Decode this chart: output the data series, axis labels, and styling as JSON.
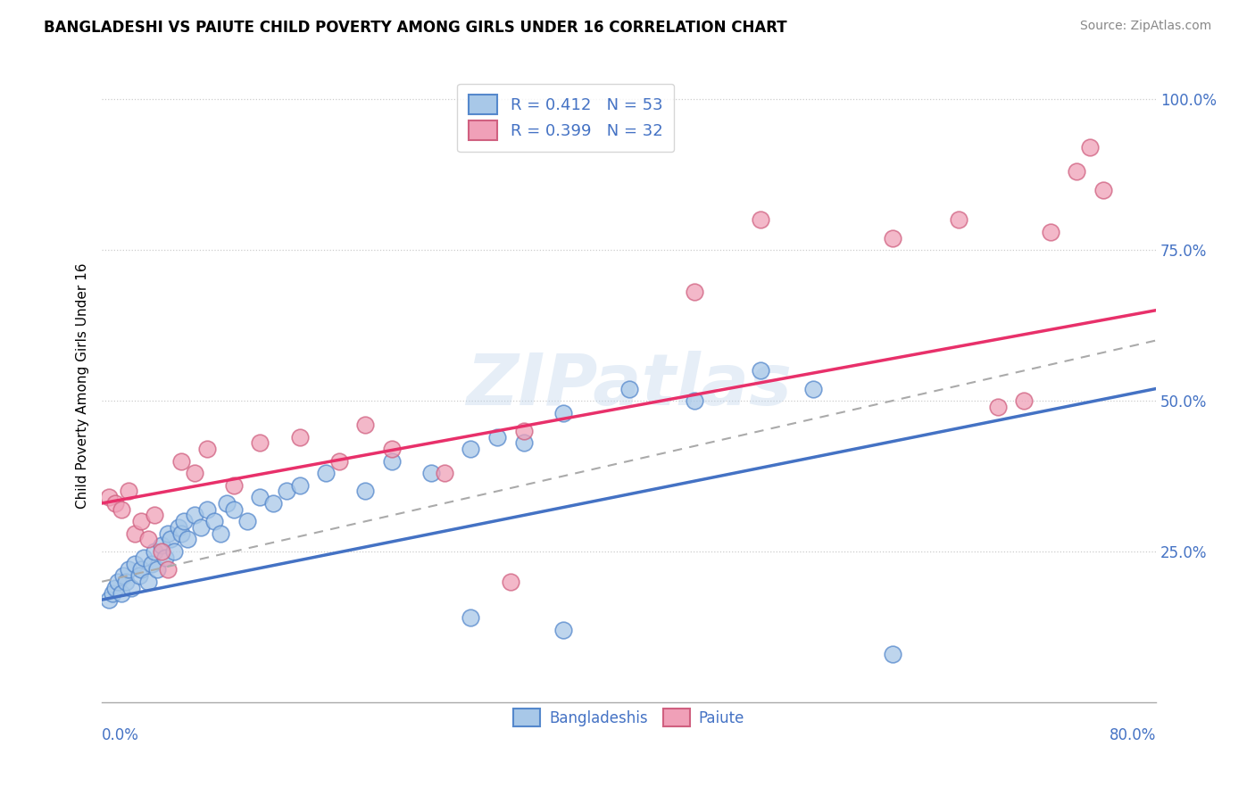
{
  "title": "BANGLADESHI VS PAIUTE CHILD POVERTY AMONG GIRLS UNDER 16 CORRELATION CHART",
  "source": "Source: ZipAtlas.com",
  "ylabel": "Child Poverty Among Girls Under 16",
  "ytick_labels": [
    "",
    "25.0%",
    "50.0%",
    "75.0%",
    "100.0%"
  ],
  "xlim": [
    0.0,
    0.8
  ],
  "ylim": [
    0.0,
    1.05
  ],
  "blue_fill": "#a8c8e8",
  "blue_edge": "#5588cc",
  "pink_fill": "#f0a0b8",
  "pink_edge": "#d06080",
  "line_blue": "#4472c4",
  "line_pink": "#e8306a",
  "line_dash": "#aaaaaa",
  "watermark": "ZIPatlas",
  "bd_x": [
    0.005,
    0.008,
    0.01,
    0.012,
    0.015,
    0.016,
    0.018,
    0.02,
    0.022,
    0.025,
    0.028,
    0.03,
    0.032,
    0.035,
    0.038,
    0.04,
    0.042,
    0.045,
    0.048,
    0.05,
    0.052,
    0.055,
    0.058,
    0.06,
    0.062,
    0.065,
    0.07,
    0.075,
    0.08,
    0.085,
    0.09,
    0.095,
    0.1,
    0.11,
    0.12,
    0.13,
    0.14,
    0.15,
    0.17,
    0.2,
    0.22,
    0.25,
    0.28,
    0.3,
    0.32,
    0.35,
    0.4,
    0.45,
    0.5,
    0.54,
    0.6,
    0.35,
    0.28
  ],
  "bd_y": [
    0.17,
    0.18,
    0.19,
    0.2,
    0.18,
    0.21,
    0.2,
    0.22,
    0.19,
    0.23,
    0.21,
    0.22,
    0.24,
    0.2,
    0.23,
    0.25,
    0.22,
    0.26,
    0.24,
    0.28,
    0.27,
    0.25,
    0.29,
    0.28,
    0.3,
    0.27,
    0.31,
    0.29,
    0.32,
    0.3,
    0.28,
    0.33,
    0.32,
    0.3,
    0.34,
    0.33,
    0.35,
    0.36,
    0.38,
    0.35,
    0.4,
    0.38,
    0.42,
    0.44,
    0.43,
    0.48,
    0.52,
    0.5,
    0.55,
    0.52,
    0.08,
    0.12,
    0.14
  ],
  "pt_x": [
    0.005,
    0.01,
    0.015,
    0.02,
    0.025,
    0.03,
    0.035,
    0.04,
    0.045,
    0.05,
    0.06,
    0.07,
    0.08,
    0.1,
    0.12,
    0.15,
    0.18,
    0.2,
    0.22,
    0.26,
    0.31,
    0.32,
    0.45,
    0.5,
    0.6,
    0.65,
    0.68,
    0.7,
    0.72,
    0.74,
    0.75,
    0.76
  ],
  "pt_y": [
    0.34,
    0.33,
    0.32,
    0.35,
    0.28,
    0.3,
    0.27,
    0.31,
    0.25,
    0.22,
    0.4,
    0.38,
    0.42,
    0.36,
    0.43,
    0.44,
    0.4,
    0.46,
    0.42,
    0.38,
    0.2,
    0.45,
    0.68,
    0.8,
    0.77,
    0.8,
    0.49,
    0.5,
    0.78,
    0.88,
    0.92,
    0.85
  ],
  "blue_line_y0": 0.17,
  "blue_line_y1": 0.52,
  "pink_line_y0": 0.33,
  "pink_line_y1": 0.65,
  "dash_line_y0": 0.2,
  "dash_line_y1": 0.6
}
